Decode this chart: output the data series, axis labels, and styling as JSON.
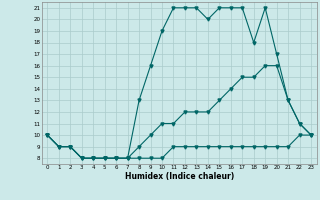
{
  "title": "",
  "xlabel": "Humidex (Indice chaleur)",
  "bg_color": "#cce9e9",
  "line_color": "#006666",
  "grid_color": "#aacccc",
  "xlim": [
    -0.5,
    23.5
  ],
  "ylim": [
    7.5,
    21.5
  ],
  "xticks": [
    0,
    1,
    2,
    3,
    4,
    5,
    6,
    7,
    8,
    9,
    10,
    11,
    12,
    13,
    14,
    15,
    16,
    17,
    18,
    19,
    20,
    21,
    22,
    23
  ],
  "yticks": [
    8,
    9,
    10,
    11,
    12,
    13,
    14,
    15,
    16,
    17,
    18,
    19,
    20,
    21
  ],
  "line1_x": [
    0,
    1,
    2,
    3,
    4,
    5,
    6,
    7,
    8,
    9,
    10,
    11,
    12,
    13,
    14,
    15,
    16,
    17,
    18,
    19,
    20,
    21,
    22,
    23
  ],
  "line1_y": [
    10,
    9,
    9,
    8,
    8,
    8,
    8,
    8,
    13,
    16,
    19,
    21,
    21,
    21,
    20,
    21,
    21,
    21,
    18,
    21,
    17,
    13,
    11,
    10
  ],
  "line2_x": [
    0,
    1,
    2,
    3,
    4,
    5,
    6,
    7,
    8,
    9,
    10,
    11,
    12,
    13,
    14,
    15,
    16,
    17,
    18,
    19,
    20,
    21,
    22,
    23
  ],
  "line2_y": [
    10,
    9,
    9,
    8,
    8,
    8,
    8,
    8,
    9,
    10,
    11,
    11,
    12,
    12,
    12,
    13,
    14,
    15,
    15,
    16,
    16,
    13,
    11,
    10
  ],
  "line3_x": [
    0,
    1,
    2,
    3,
    4,
    5,
    6,
    7,
    8,
    9,
    10,
    11,
    12,
    13,
    14,
    15,
    16,
    17,
    18,
    19,
    20,
    21,
    22,
    23
  ],
  "line3_y": [
    10,
    9,
    9,
    8,
    8,
    8,
    8,
    8,
    8,
    8,
    8,
    9,
    9,
    9,
    9,
    9,
    9,
    9,
    9,
    9,
    9,
    9,
    10,
    10
  ]
}
